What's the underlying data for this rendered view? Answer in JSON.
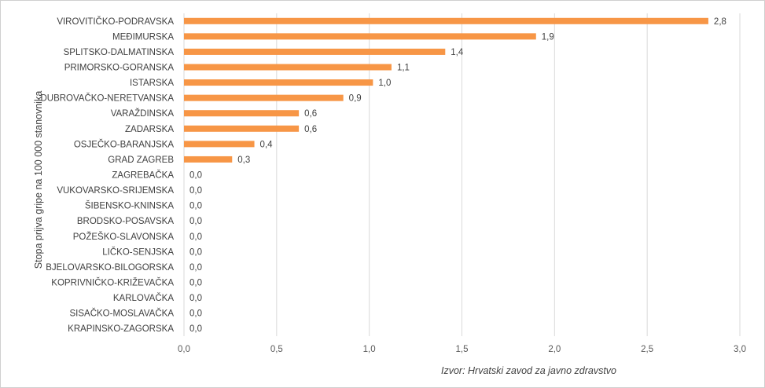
{
  "chart_data": {
    "type": "bar",
    "orientation": "horizontal",
    "categories": [
      "VIROVITIČKO-PODRAVSKA",
      "MEĐIMURSKA",
      "SPLITSKO-DALMATINSKA",
      "PRIMORSKO-GORANSKA",
      "ISTARSKA",
      "DUBROVAČKO-NERETVANSKA",
      "VARAŽDINSKA",
      "ZADARSKA",
      "OSJEČKO-BARANJSKA",
      "GRAD ZAGREB",
      "ZAGREBAČKA",
      "VUKOVARSKO-SRIJEMSKA",
      "ŠIBENSKO-KNINSKA",
      "BRODSKO-POSAVSKA",
      "POŽEŠKO-SLAVONSKA",
      "LIČKO-SENJSKA",
      "BJELOVARSKO-BILOGORSKA",
      "KOPRIVNIČKO-KRIŽEVAČKA",
      "KARLOVAČKA",
      "SISAČKO-MOSLAVAČKA",
      "KRAPINSKO-ZAGORSKA"
    ],
    "values": [
      2.83,
      1.9,
      1.41,
      1.12,
      1.02,
      0.86,
      0.62,
      0.62,
      0.38,
      0.26,
      0,
      0,
      0,
      0,
      0,
      0,
      0,
      0,
      0,
      0,
      0
    ],
    "data_labels": [
      "2,8",
      "1,9",
      "1,4",
      "1,1",
      "1,0",
      "0,9",
      "0,6",
      "0,6",
      "0,4",
      "0,3",
      "0,0",
      "0,0",
      "0,0",
      "0,0",
      "0,0",
      "0,0",
      "0,0",
      "0,0",
      "0,0",
      "0,0",
      "0,0"
    ],
    "ylabel": "Stopa prijva gripe na 100 000 stanovnika",
    "xlim": [
      0,
      3
    ],
    "x_ticks": [
      0,
      0.5,
      1,
      1.5,
      2,
      2.5,
      3
    ],
    "x_tick_labels": [
      "0,0",
      "0,5",
      "1,0",
      "1,5",
      "2,0",
      "2,5",
      "3,0"
    ],
    "grid": "vertical",
    "legend": "none",
    "bar_color": "#F79646",
    "source": "Izvor: Hrvatski zavod za javno zdravstvo"
  }
}
